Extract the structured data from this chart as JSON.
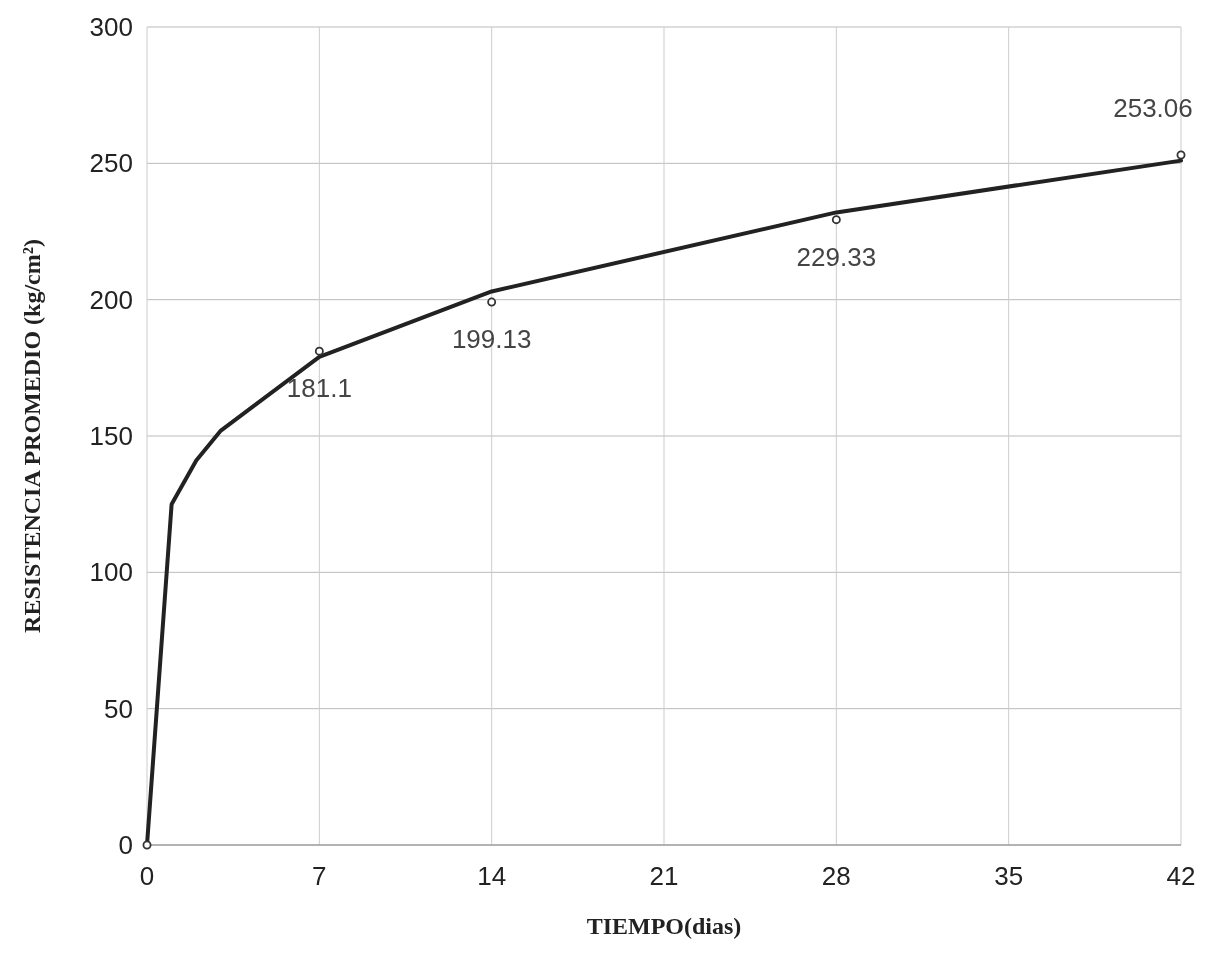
{
  "chart_data": {
    "type": "scatter",
    "xlabel": "TIEMPO(dias)",
    "ylabel": "RESISTENCIA PROMEDIO (kg/cm²)",
    "xlim": [
      0,
      42
    ],
    "ylim": [
      0,
      300
    ],
    "xticks": [
      0,
      7,
      14,
      21,
      28,
      35,
      42
    ],
    "yticks": [
      0,
      50,
      100,
      150,
      200,
      250,
      300
    ],
    "grid": true,
    "series": [
      {
        "type": "line",
        "marker": "none",
        "color": "#222222",
        "x": [
          0,
          1,
          2,
          3,
          7,
          14,
          28,
          42
        ],
        "values": [
          0,
          125,
          141,
          152,
          179,
          203,
          232,
          251
        ]
      },
      {
        "marker": "circle",
        "color": "#333333",
        "x": [
          0,
          7,
          14,
          28,
          42
        ],
        "values": [
          0,
          181.1,
          199.13,
          229.33,
          253.06
        ],
        "value_labels": [
          null,
          "181.1",
          "199.13",
          "229.33",
          "253.06"
        ]
      }
    ]
  }
}
